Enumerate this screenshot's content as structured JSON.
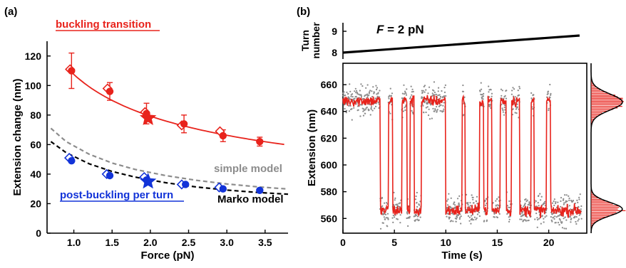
{
  "colors": {
    "red": "#e8231c",
    "blue": "#1233d8",
    "gray": "#8c8c8c",
    "black": "#000000",
    "underline_blue": "#1233d8"
  },
  "chart_data": [
    {
      "panel": "(a)",
      "type": "scatter",
      "xlabel": "Force (pN)",
      "ylabel": "Extension change (nm)",
      "xlim": [
        0.65,
        3.8
      ],
      "ylim": [
        0,
        130
      ],
      "xticks": [
        "1.0",
        "1.5",
        "2.0",
        "2.5",
        "3.0",
        "3.5"
      ],
      "yticks": [
        "0",
        "20",
        "40",
        "60",
        "80",
        "100",
        "120"
      ],
      "grid": false,
      "series": [
        {
          "name": "buckling transition",
          "color": "#e8231c",
          "points_filled": [
            {
              "x": 0.97,
              "y": 110,
              "err": 12
            },
            {
              "x": 1.47,
              "y": 96,
              "err": 6
            },
            {
              "x": 1.95,
              "y": 81,
              "err": 7
            },
            {
              "x": 2.44,
              "y": 74,
              "err": 6
            },
            {
              "x": 2.95,
              "y": 66,
              "err": 4
            },
            {
              "x": 3.43,
              "y": 62,
              "err": 3
            }
          ],
          "points_open_diamond": [
            {
              "x": 0.95,
              "y": 111
            },
            {
              "x": 1.44,
              "y": 98
            },
            {
              "x": 1.93,
              "y": 82
            },
            {
              "x": 2.41,
              "y": 73
            },
            {
              "x": 2.91,
              "y": 69
            }
          ],
          "star": {
            "x": 1.97,
            "y": 78
          },
          "fit": "solid"
        },
        {
          "name": "post-buckling per turn",
          "color": "#1233d8",
          "points_filled": [
            {
              "x": 0.97,
              "y": 49
            },
            {
              "x": 1.47,
              "y": 39
            },
            {
              "x": 1.95,
              "y": 36
            },
            {
              "x": 2.46,
              "y": 33
            },
            {
              "x": 2.95,
              "y": 30
            },
            {
              "x": 3.43,
              "y": 29
            }
          ],
          "points_open_diamond": [
            {
              "x": 0.94,
              "y": 51
            },
            {
              "x": 1.43,
              "y": 40
            },
            {
              "x": 1.92,
              "y": 38
            },
            {
              "x": 2.41,
              "y": 33
            },
            {
              "x": 2.9,
              "y": 31
            }
          ],
          "star": {
            "x": 1.97,
            "y": 35
          }
        },
        {
          "name": "simple model",
          "color": "#8c8c8c",
          "style": "dashed",
          "curve_x": [
            0.7,
            0.9,
            1.2,
            1.5,
            1.8,
            2.2,
            2.6,
            3.0,
            3.4,
            3.8
          ],
          "curve_y": [
            71,
            62,
            53.5,
            47.5,
            43.2,
            39,
            35.8,
            33.3,
            31.4,
            29.9
          ]
        },
        {
          "name": "Marko model",
          "color": "#000000",
          "style": "dashed",
          "curve_x": [
            0.7,
            0.9,
            1.2,
            1.5,
            1.8,
            2.2,
            2.6,
            3.0,
            3.4,
            3.8
          ],
          "curve_y": [
            62,
            54.5,
            47,
            41.8,
            38,
            34.2,
            31.3,
            29.2,
            27.6,
            26.4
          ]
        }
      ],
      "annotations": [
        "buckling transition",
        "simple model",
        "post-buckling per turn",
        "Marko model"
      ]
    },
    {
      "panel": "(b)",
      "type": "line",
      "title": "F = 2 pN",
      "top_plot": {
        "ylabel": "Turn number",
        "ylim": [
          7.7,
          9.4
        ],
        "yticks": [
          "8",
          "9"
        ],
        "line": {
          "x": [
            0,
            23
          ],
          "y": [
            8.0,
            8.8
          ],
          "color": "#000000"
        }
      },
      "main_plot": {
        "xlabel": "Time (s)",
        "ylabel": "Extension (nm)",
        "xlim": [
          0,
          23.7
        ],
        "ylim": [
          549,
          676
        ],
        "xticks": [
          "0",
          "5",
          "10",
          "15",
          "20"
        ],
        "yticks": [
          "560",
          "580",
          "600",
          "620",
          "640",
          "660"
        ],
        "states": {
          "high_nm": 648,
          "low_nm": 566
        },
        "dwells": [
          [
            0,
            3.6,
            "H"
          ],
          [
            3.6,
            4.4,
            "L"
          ],
          [
            4.4,
            4.8,
            "H"
          ],
          [
            4.8,
            5.7,
            "L"
          ],
          [
            5.7,
            6.2,
            "H"
          ],
          [
            6.2,
            6.5,
            "L"
          ],
          [
            6.5,
            6.9,
            "H"
          ],
          [
            6.9,
            7.6,
            "L"
          ],
          [
            7.6,
            10.0,
            "H"
          ],
          [
            10.0,
            11.6,
            "L"
          ],
          [
            11.6,
            11.9,
            "H"
          ],
          [
            11.9,
            13.3,
            "L"
          ],
          [
            13.3,
            13.7,
            "H"
          ],
          [
            13.7,
            14.1,
            "L"
          ],
          [
            14.1,
            14.5,
            "H"
          ],
          [
            14.5,
            15.3,
            "L"
          ],
          [
            15.3,
            15.9,
            "H"
          ],
          [
            15.9,
            16.4,
            "L"
          ],
          [
            16.4,
            17.2,
            "H"
          ],
          [
            17.2,
            18.3,
            "L"
          ],
          [
            18.3,
            18.6,
            "H"
          ],
          [
            18.6,
            19.8,
            "L"
          ],
          [
            19.8,
            20.2,
            "H"
          ],
          [
            20.2,
            23.2,
            "L"
          ]
        ],
        "raw_color": "#8c8c8c",
        "filtered_color": "#e8231c"
      },
      "histogram": {
        "ylim": [
          549,
          676
        ],
        "peaks": [
          {
            "center": 647,
            "width": 6,
            "height": 1.0
          },
          {
            "center": 567,
            "width": 5,
            "height": 1.0
          }
        ],
        "bar_color": "#e8231c",
        "fit_color": "#000000"
      }
    }
  ]
}
